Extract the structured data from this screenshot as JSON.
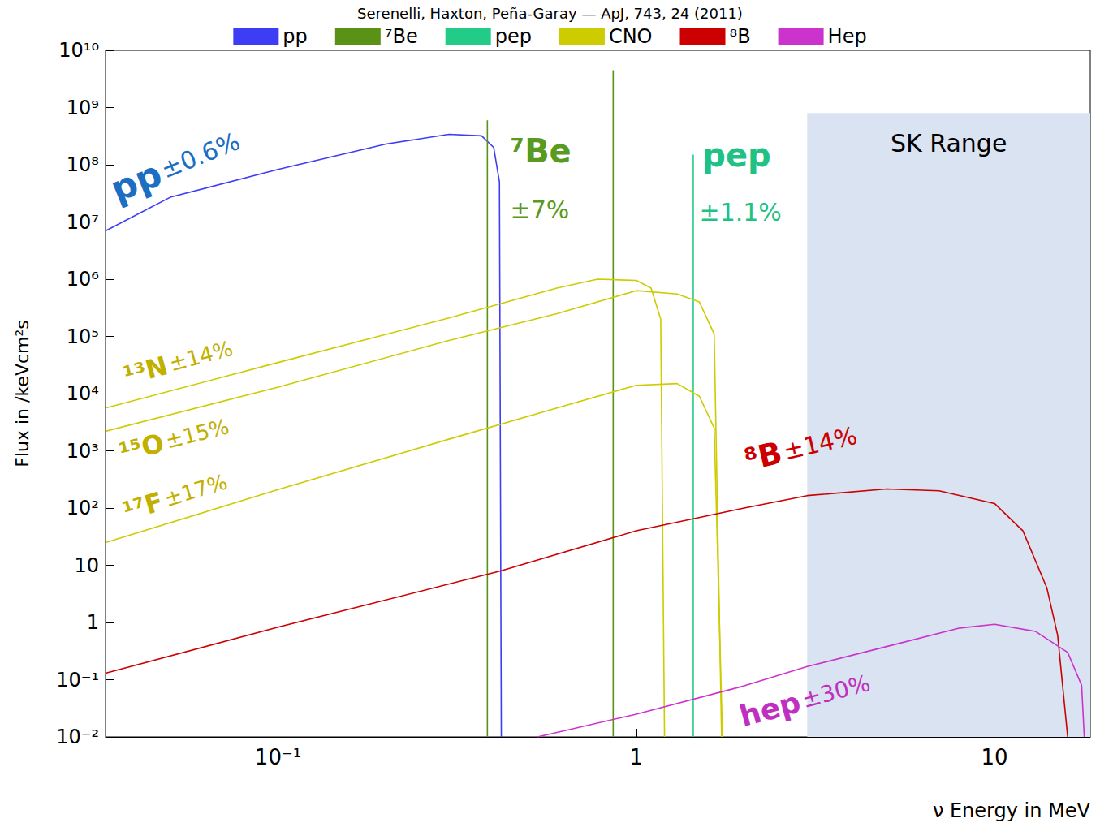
{
  "chart_data": {
    "type": "line",
    "title": "Serenelli, Haxton, Peña-Garay — ApJ, 743, 24 (2011)",
    "x_label": "ν Energy in MeV",
    "y_label": "Flux in /keVcm²s",
    "log": true,
    "grid": false,
    "legend": "top",
    "xlim": [
      0.033,
      18.5
    ],
    "ylim": [
      0.01,
      10000000000
    ],
    "xticks": [
      {
        "value": 0.1,
        "label": "10⁻¹"
      },
      1,
      10
    ],
    "yticks": [
      {
        "value": 0.01,
        "label": "10⁻²"
      },
      {
        "value": 0.1,
        "label": "10⁻¹"
      },
      1,
      10,
      {
        "value": 100,
        "label": "10²"
      },
      {
        "value": 1000,
        "label": "10³"
      },
      {
        "value": 10000,
        "label": "10⁴"
      },
      {
        "value": 100000,
        "label": "10⁵"
      },
      {
        "value": 1000000,
        "label": "10⁶"
      },
      {
        "value": 10000000,
        "label": "10⁷"
      },
      {
        "value": 100000000,
        "label": "10⁸"
      },
      {
        "value": 1000000000,
        "label": "10⁹"
      },
      {
        "value": 10000000000,
        "label": "10¹⁰"
      }
    ],
    "series": [
      {
        "name": "pp",
        "color": "#3d3df5",
        "type": "line",
        "x": [
          0.033,
          0.05,
          0.1,
          0.2,
          0.3,
          0.37,
          0.4,
          0.415,
          0.42
        ],
        "values": [
          7000000,
          27000000,
          83000000,
          230000000,
          340000000,
          320000000,
          200000000,
          50000000,
          0.01
        ]
      },
      {
        "name": "⁷Be",
        "color": "#5a9216",
        "type": "spike",
        "x": [
          0.384,
          0.862
        ],
        "values": [
          600000000,
          4500000000
        ]
      },
      {
        "name": "pep",
        "color": "#22cc88",
        "type": "spike",
        "x": [
          1.442
        ],
        "values": [
          150000000
        ]
      },
      {
        "name": "CNO",
        "color": "#cccc00",
        "type": "line",
        "curves": [
          {
            "x": [
              0.033,
              0.1,
              0.3,
              0.6,
              0.78,
              1.0,
              1.1,
              1.17,
              1.199
            ],
            "values": [
              5600,
              35000,
              210000,
              700000,
              1000000,
              950000,
              700000,
              200000,
              0.01
            ]
          },
          {
            "x": [
              0.033,
              0.1,
              0.3,
              0.6,
              1.0,
              1.3,
              1.5,
              1.65,
              1.73
            ],
            "values": [
              2200,
              13000,
              85000,
              250000,
              630000,
              550000,
              400000,
              110000,
              0.01
            ]
          },
          {
            "x": [
              0.033,
              0.1,
              0.3,
              0.6,
              1.0,
              1.3,
              1.5,
              1.65,
              1.74
            ],
            "values": [
              25,
              210,
              1600,
              5600,
              14000,
              15000,
              9000,
              2500,
              0.01
            ]
          }
        ]
      },
      {
        "name": "⁸B",
        "color": "#cc0000",
        "type": "line",
        "x": [
          0.033,
          0.1,
          0.42,
          1,
          2,
          3,
          5,
          7,
          10,
          12,
          14,
          15,
          16
        ],
        "values": [
          0.13,
          0.83,
          8,
          40,
          100,
          165,
          215,
          200,
          120,
          40,
          4,
          0.6,
          0.01
        ]
      },
      {
        "name": "Hep",
        "color": "#cc33cc",
        "type": "line",
        "x": [
          0.53,
          1,
          2,
          3,
          5,
          8,
          10,
          13,
          16,
          17.5,
          17.8
        ],
        "values": [
          0.01,
          0.025,
          0.078,
          0.17,
          0.38,
          0.8,
          0.93,
          0.7,
          0.3,
          0.08,
          0.01
        ]
      }
    ],
    "annotations": [
      {
        "text": "pp ±0.6%",
        "color": "#1b6ec2"
      },
      {
        "text": "⁷Be",
        "color": "#5a9a20"
      },
      {
        "text": "±7%",
        "color": "#5a9a20"
      },
      {
        "text": "pep",
        "color": "#1fc282"
      },
      {
        "text": "±1.1%",
        "color": "#1fc282"
      },
      {
        "text": "¹³N ±14%",
        "color": "#c2b000"
      },
      {
        "text": "¹⁵O ±15%",
        "color": "#c2b000"
      },
      {
        "text": "¹⁷F ±17%",
        "color": "#c2b000"
      },
      {
        "text": "⁸B ±14%",
        "color": "#cc0000"
      },
      {
        "text": "hep ±30%",
        "color": "#c030c0"
      }
    ],
    "regions": [
      {
        "text": "SK Range",
        "x": [
          3,
          18.5
        ],
        "y": [
          0.01,
          800000000
        ],
        "color": "#d9e3f2"
      }
    ]
  }
}
